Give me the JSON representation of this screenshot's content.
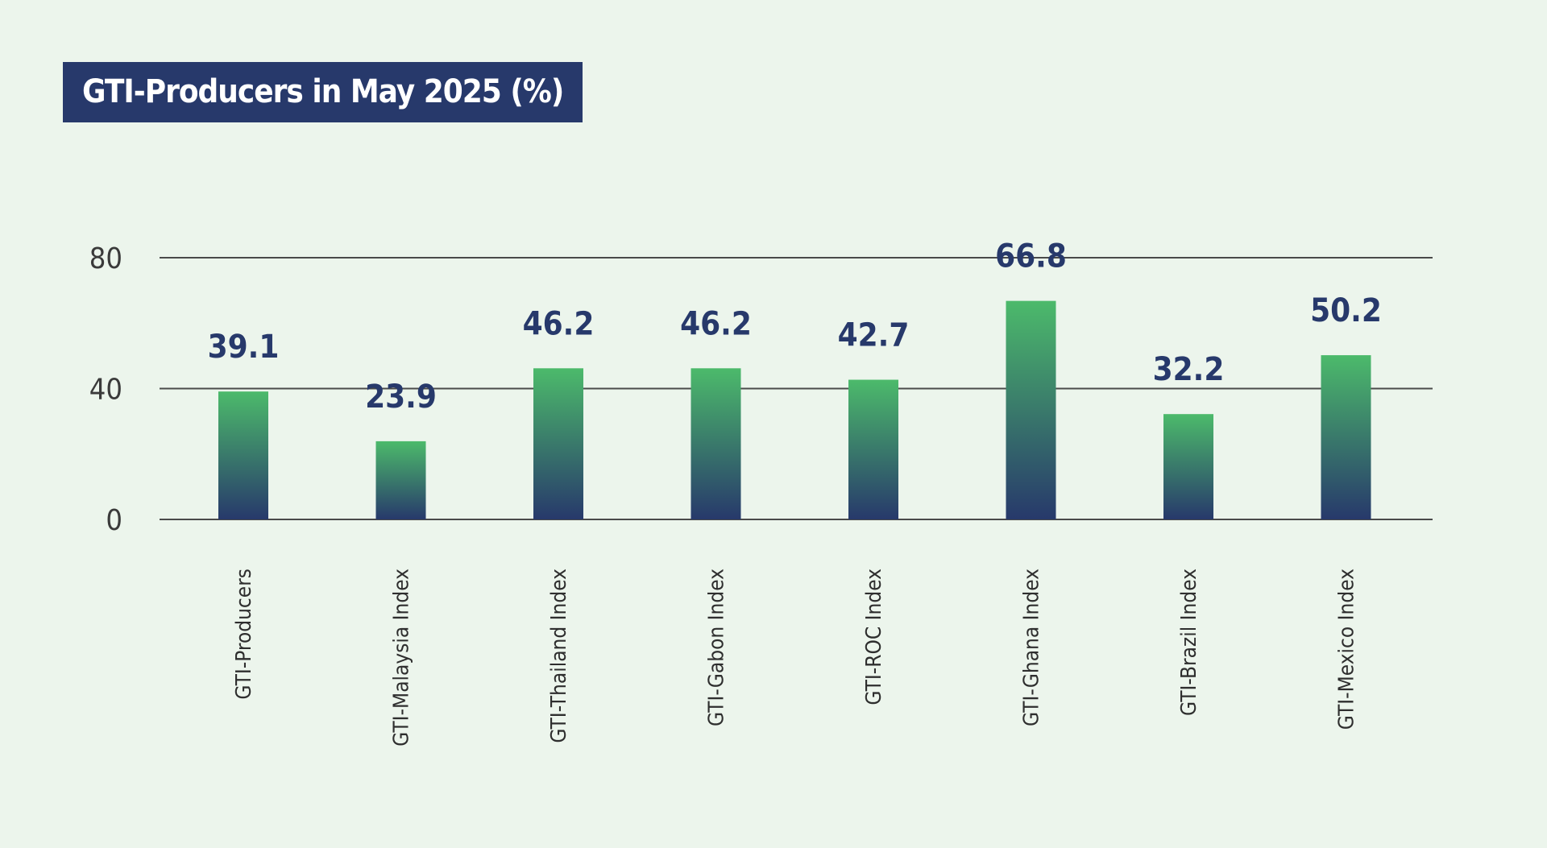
{
  "chart_data": {
    "type": "bar",
    "title": "GTI-Producers in May 2025 (%)",
    "categories": [
      "GTI-Producers",
      "GTI-Malaysia Index",
      "GTI-Thailand Index",
      "GTI-Gabon Index",
      "GTI-ROC Index",
      "GTI-Ghana Index",
      "GTI-Brazil Index",
      "GTI-Mexico Index"
    ],
    "values": [
      39.1,
      23.9,
      46.2,
      46.2,
      42.7,
      66.8,
      32.2,
      50.2
    ],
    "value_labels": [
      "39.1",
      "23.9",
      "46.2",
      "46.2",
      "42.7",
      "66.8",
      "32.2",
      "50.2"
    ],
    "yticks": [
      "0",
      "40",
      "80"
    ],
    "ylim": [
      0,
      80
    ],
    "grid": true,
    "legend": "none",
    "colors": {
      "bar_top": "#4cba6b",
      "bar_bottom": "#27396b",
      "value_text": "#27396b",
      "title_bg": "#27396b",
      "background": "#ecf5ec"
    }
  }
}
